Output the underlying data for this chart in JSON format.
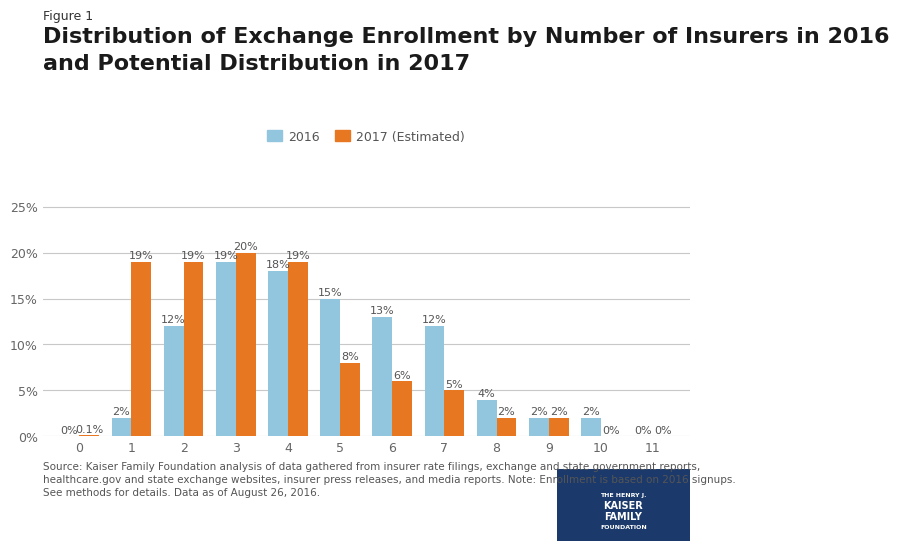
{
  "categories": [
    0,
    1,
    2,
    3,
    4,
    5,
    6,
    7,
    8,
    9,
    10,
    11
  ],
  "values_2016": [
    0,
    2,
    12,
    19,
    18,
    15,
    13,
    12,
    4,
    2,
    2,
    0
  ],
  "values_2017": [
    0.1,
    19,
    19,
    20,
    19,
    8,
    6,
    5,
    2,
    2,
    0,
    0
  ],
  "labels_2016": [
    "0%",
    "2%",
    "12%",
    "19%",
    "18%",
    "15%",
    "13%",
    "12%",
    "4%",
    "2%",
    "2%",
    "0%"
  ],
  "labels_2017": [
    "0.1%",
    "19%",
    "19%",
    "20%",
    "19%",
    "8%",
    "6%",
    "5%",
    "2%",
    "2%",
    "0%",
    "0%"
  ],
  "color_2016": "#92C5DE",
  "color_2017": "#E87722",
  "legend_2016": "2016",
  "legend_2017": "2017 (Estimated)",
  "title_label": "Figure 1",
  "title_line1": "Distribution of Exchange Enrollment by Number of Insurers in 2016",
  "title_line2": "and Potential Distribution in 2017",
  "ylim": [
    0,
    0.27
  ],
  "yticks": [
    0.0,
    0.05,
    0.1,
    0.15,
    0.2,
    0.25
  ],
  "ytick_labels": [
    "0%",
    "5%",
    "10%",
    "15%",
    "20%",
    "25%"
  ],
  "source_text": "Source: Kaiser Family Foundation analysis of data gathered from insurer rate filings, exchange and state government reports,\nhealthcare.gov and state exchange websites, insurer press releases, and media reports. Note: Enrollment is based on 2016 signups.\nSee methods for details. Data as of August 26, 2016.",
  "background_color": "#FFFFFF",
  "grid_color": "#C8C8C8",
  "title_label_fontsize": 9,
  "title_fontsize": 16,
  "bar_width": 0.38,
  "annotation_fontsize": 8,
  "tick_fontsize": 9
}
